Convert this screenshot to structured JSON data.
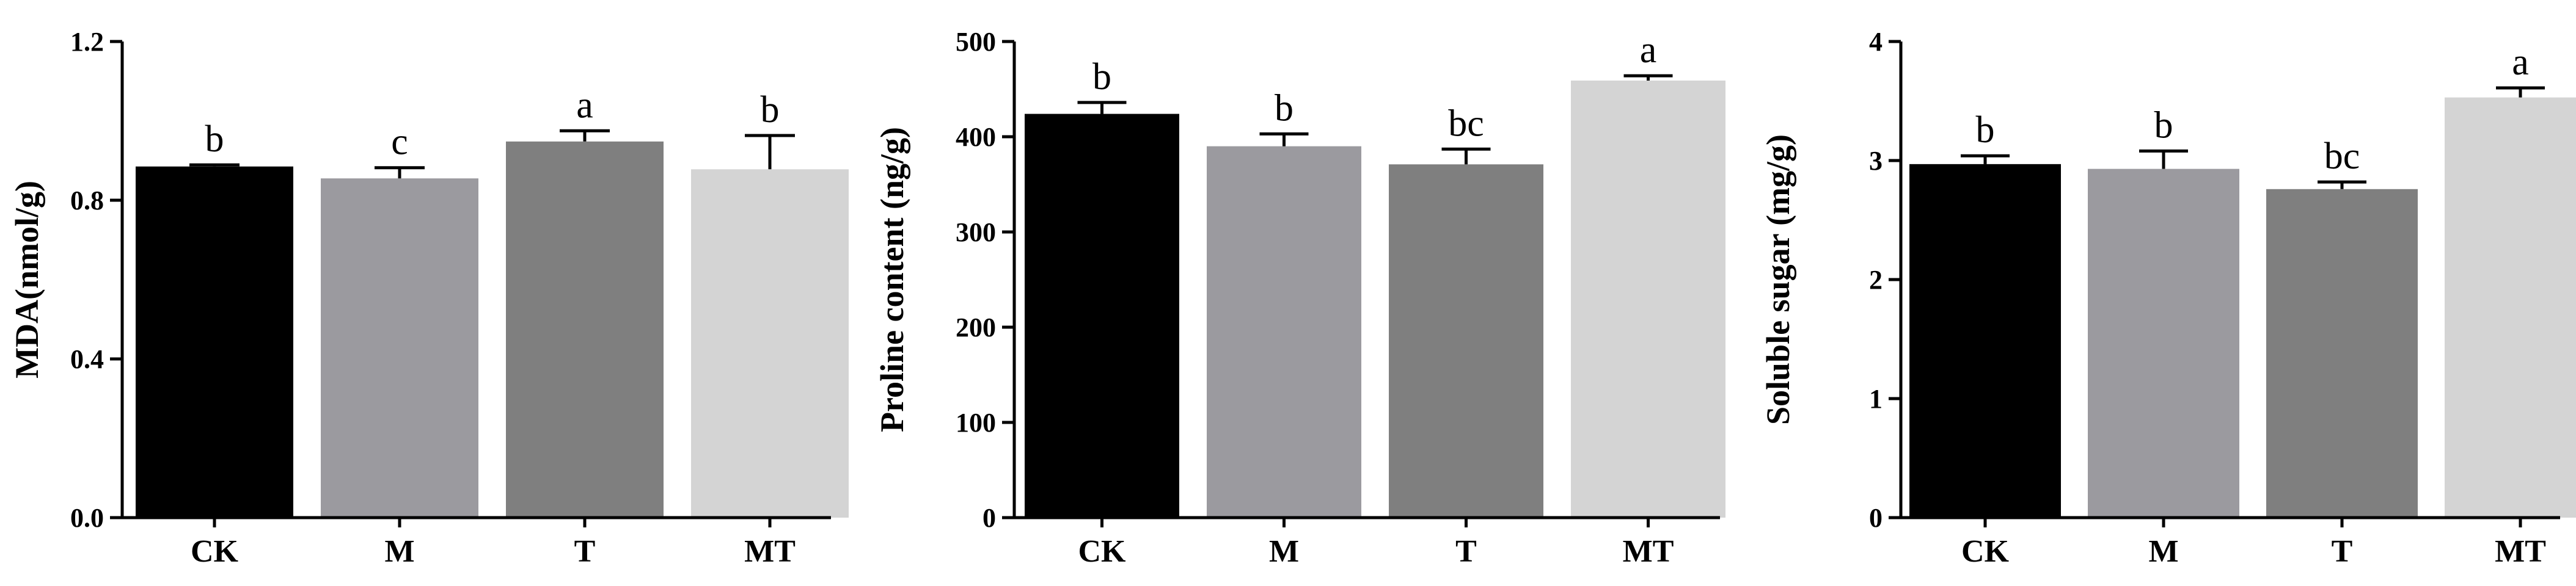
{
  "chart_data": [
    {
      "type": "bar",
      "ylabel": "MDA(nmol/g)",
      "ylim": [
        0,
        1.2
      ],
      "yticks": [
        "0.0",
        "0.4",
        "0.8",
        "1.2"
      ],
      "categories": [
        "CK",
        "M",
        "T",
        "MT"
      ],
      "values": [
        0.885,
        0.855,
        0.948,
        0.878
      ],
      "errors": [
        0.004,
        0.027,
        0.027,
        0.085
      ],
      "significance": [
        "b",
        "c",
        "a",
        "b"
      ],
      "colors": [
        "#000000",
        "#9b9a9f",
        "#7f7f7f",
        "#d4d4d4"
      ]
    },
    {
      "type": "bar",
      "ylabel": "Proline content (ng/g)",
      "ylim": [
        0,
        500
      ],
      "yticks": [
        "0",
        "100",
        "200",
        "300",
        "400",
        "500"
      ],
      "categories": [
        "CK",
        "M",
        "T",
        "MT"
      ],
      "values": [
        424,
        390,
        371,
        459
      ],
      "errors": [
        12,
        13,
        16,
        5
      ],
      "significance": [
        "b",
        "b",
        "bc",
        "a"
      ],
      "colors": [
        "#000000",
        "#9b9a9f",
        "#7f7f7f",
        "#d4d4d4"
      ]
    },
    {
      "type": "bar",
      "ylabel": "Soluble sugar (mg/g)",
      "ylim": [
        0,
        4
      ],
      "yticks": [
        "0",
        "1",
        "2",
        "3",
        "4"
      ],
      "categories": [
        "CK",
        "M",
        "T",
        "MT"
      ],
      "values": [
        2.97,
        2.93,
        2.76,
        3.53
      ],
      "errors": [
        0.07,
        0.15,
        0.06,
        0.08
      ],
      "significance": [
        "b",
        "b",
        "bc",
        "a"
      ],
      "colors": [
        "#000000",
        "#9b9a9f",
        "#7f7f7f",
        "#d4d4d4"
      ]
    }
  ]
}
